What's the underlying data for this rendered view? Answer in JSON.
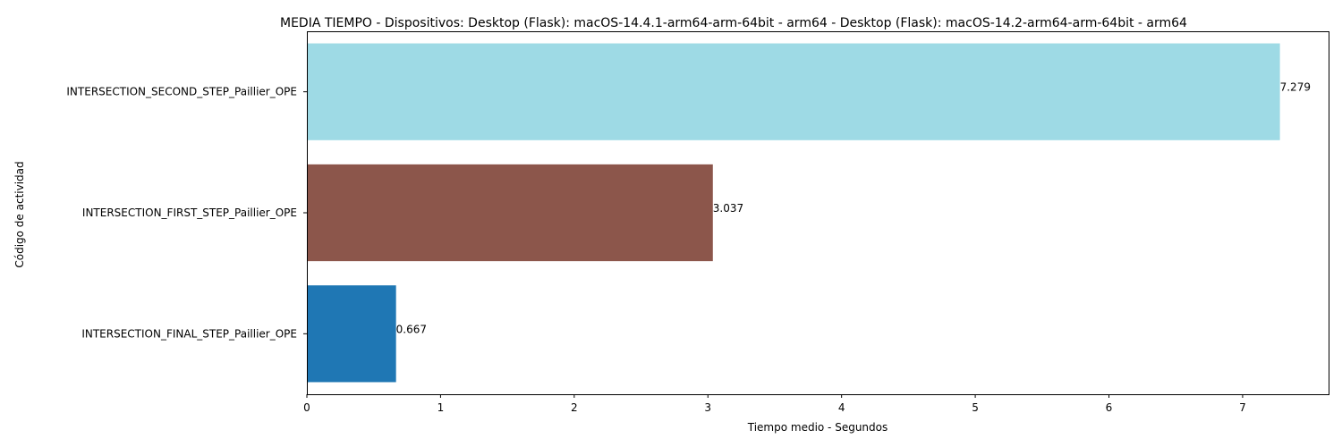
{
  "chart_data": {
    "type": "bar",
    "orientation": "horizontal",
    "title": "MEDIA TIEMPO - Dispositivos: Desktop (Flask): macOS-14.4.1-arm64-arm-64bit - arm64 - Desktop (Flask): macOS-14.2-arm64-arm-64bit - arm64",
    "xlabel": "Tiempo medio - Segundos",
    "ylabel": "Código de actividad",
    "categories": [
      "INTERSECTION_SECOND_STEP_Paillier_OPE",
      "INTERSECTION_FIRST_STEP_Paillier_OPE",
      "INTERSECTION_FINAL_STEP_Paillier_OPE"
    ],
    "values": [
      7.279,
      3.037,
      0.667
    ],
    "data_labels": [
      "7.279",
      "3.037",
      "0.667"
    ],
    "colors": [
      "#9edae5",
      "#8c564b",
      "#1f77b4"
    ],
    "xlim": [
      0,
      7.643
    ],
    "xticks": [
      0,
      1,
      2,
      3,
      4,
      5,
      6,
      7
    ],
    "xtick_labels": [
      "0",
      "1",
      "2",
      "3",
      "4",
      "5",
      "6",
      "7"
    ],
    "grid": false,
    "legend": "none"
  }
}
